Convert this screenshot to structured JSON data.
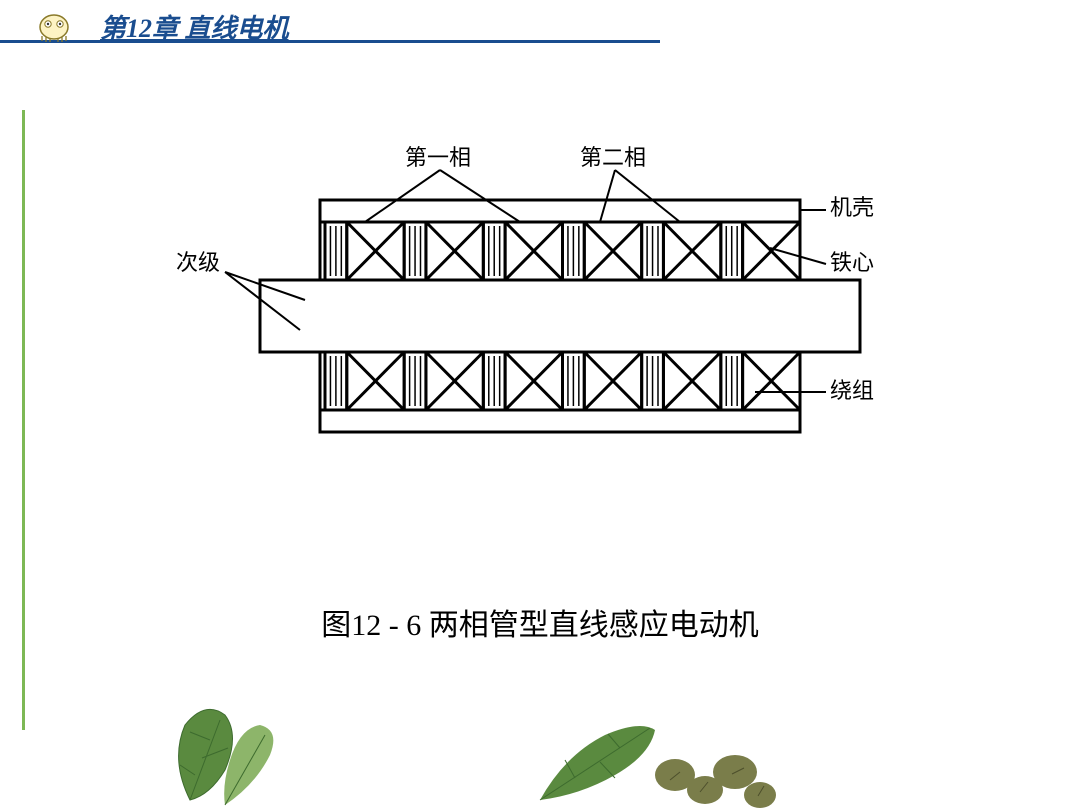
{
  "header": {
    "chapter_title": "第12章 直线电机",
    "accent_color": "#1a4d8f",
    "side_accent": "#7db855"
  },
  "diagram": {
    "labels": {
      "phase1": "第一相",
      "phase2": "第二相",
      "casing": "机壳",
      "core": "铁心",
      "secondary": "次级",
      "winding": "绕组"
    },
    "stroke": "#000000",
    "stroke_width": 3,
    "coils_per_row": 6
  },
  "caption": "图12 - 6 两相管型直线感应电动机",
  "leaf_colors": {
    "green_dark": "#3d6b2e",
    "green_mid": "#5a8a3f",
    "green_light": "#8db56a",
    "olive": "#7a7d4a"
  }
}
